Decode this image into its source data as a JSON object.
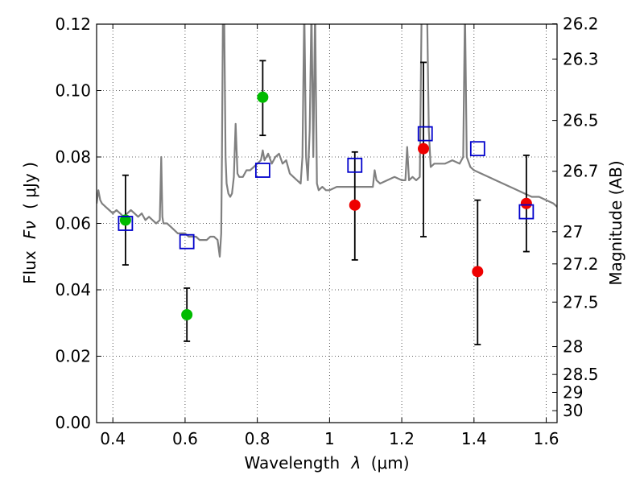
{
  "chart_data": {
    "type": "scatter",
    "title": "",
    "xlabel": "Wavelength",
    "xlabel_symbol": "λ",
    "xlabel_unit": "(μm)",
    "ylabel": "Flux",
    "ylabel_symbol": "Fν",
    "ylabel_unit": "( μJy )",
    "y2label": "Magnitude (AB)",
    "xlim": [
      0.355,
      1.63
    ],
    "ylim": [
      0.0,
      0.12
    ],
    "grid": true,
    "x_ticks": [
      0.4,
      0.6,
      0.8,
      1.0,
      1.2,
      1.4,
      1.6
    ],
    "x_tick_labels": [
      "0.4",
      "0.6",
      "0.8",
      "1",
      "1.2",
      "1.4",
      "1.6"
    ],
    "y_ticks": [
      0.0,
      0.02,
      0.04,
      0.06,
      0.08,
      0.1,
      0.12
    ],
    "y_tick_labels": [
      "0.00",
      "0.02",
      "0.04",
      "0.06",
      "0.08",
      "0.10",
      "0.12"
    ],
    "y2_ticks": [
      {
        "label": "26.2",
        "flux": 0.1201
      },
      {
        "label": "26.3",
        "flux": 0.1095
      },
      {
        "label": "26.5",
        "flux": 0.091
      },
      {
        "label": "26.7",
        "flux": 0.0757
      },
      {
        "label": "27",
        "flux": 0.0575
      },
      {
        "label": "27.2",
        "flux": 0.0478
      },
      {
        "label": "27.5",
        "flux": 0.0363
      },
      {
        "label": "28",
        "flux": 0.0229
      },
      {
        "label": "28.5",
        "flux": 0.0145
      },
      {
        "label": "29",
        "flux": 0.0091
      },
      {
        "label": "30",
        "flux": 0.0036
      }
    ],
    "colors": {
      "spectrum": "#808080",
      "green_points": "#00bb00",
      "red_points": "#ee0000",
      "model_squares": "#0000cc",
      "error_bars": "#000000",
      "grid": "#333333"
    },
    "series": [
      {
        "name": "spectrum",
        "kind": "line",
        "x": [
          0.355,
          0.36,
          0.365,
          0.37,
          0.38,
          0.39,
          0.4,
          0.41,
          0.42,
          0.43,
          0.44,
          0.45,
          0.46,
          0.47,
          0.48,
          0.49,
          0.5,
          0.51,
          0.52,
          0.53,
          0.534,
          0.537,
          0.54,
          0.55,
          0.56,
          0.57,
          0.58,
          0.59,
          0.6,
          0.61,
          0.62,
          0.63,
          0.64,
          0.65,
          0.66,
          0.67,
          0.68,
          0.69,
          0.696,
          0.7,
          0.702,
          0.705,
          0.708,
          0.712,
          0.715,
          0.72,
          0.725,
          0.73,
          0.735,
          0.74,
          0.745,
          0.75,
          0.76,
          0.77,
          0.78,
          0.79,
          0.8,
          0.81,
          0.815,
          0.82,
          0.83,
          0.84,
          0.85,
          0.86,
          0.87,
          0.88,
          0.89,
          0.9,
          0.91,
          0.92,
          0.925,
          0.93,
          0.935,
          0.94,
          0.945,
          0.95,
          0.955,
          0.96,
          0.965,
          0.97,
          0.98,
          0.99,
          1.0,
          1.02,
          1.04,
          1.06,
          1.08,
          1.1,
          1.12,
          1.125,
          1.13,
          1.14,
          1.16,
          1.18,
          1.2,
          1.21,
          1.215,
          1.22,
          1.23,
          1.24,
          1.25,
          1.255,
          1.26,
          1.265,
          1.27,
          1.275,
          1.28,
          1.29,
          1.3,
          1.32,
          1.34,
          1.36,
          1.37,
          1.375,
          1.38,
          1.39,
          1.4,
          1.42,
          1.44,
          1.46,
          1.48,
          1.5,
          1.52,
          1.54,
          1.56,
          1.58,
          1.6,
          1.62,
          1.63
        ],
        "y": [
          0.066,
          0.07,
          0.067,
          0.066,
          0.065,
          0.064,
          0.063,
          0.064,
          0.063,
          0.062,
          0.063,
          0.064,
          0.063,
          0.062,
          0.063,
          0.061,
          0.062,
          0.061,
          0.06,
          0.061,
          0.08,
          0.062,
          0.06,
          0.06,
          0.059,
          0.058,
          0.057,
          0.057,
          0.057,
          0.056,
          0.056,
          0.056,
          0.055,
          0.055,
          0.055,
          0.056,
          0.056,
          0.055,
          0.05,
          0.057,
          0.08,
          0.125,
          0.125,
          0.08,
          0.072,
          0.069,
          0.068,
          0.069,
          0.074,
          0.09,
          0.075,
          0.074,
          0.074,
          0.076,
          0.076,
          0.077,
          0.078,
          0.079,
          0.082,
          0.079,
          0.081,
          0.078,
          0.08,
          0.081,
          0.078,
          0.079,
          0.075,
          0.074,
          0.073,
          0.072,
          0.08,
          0.125,
          0.08,
          0.073,
          0.088,
          0.125,
          0.08,
          0.125,
          0.072,
          0.07,
          0.071,
          0.07,
          0.07,
          0.071,
          0.071,
          0.071,
          0.071,
          0.071,
          0.071,
          0.076,
          0.073,
          0.072,
          0.073,
          0.074,
          0.073,
          0.073,
          0.083,
          0.073,
          0.074,
          0.073,
          0.074,
          0.125,
          0.125,
          0.125,
          0.125,
          0.088,
          0.077,
          0.078,
          0.078,
          0.078,
          0.079,
          0.078,
          0.08,
          0.125,
          0.08,
          0.077,
          0.076,
          0.075,
          0.074,
          0.073,
          0.072,
          0.071,
          0.07,
          0.069,
          0.068,
          0.068,
          0.067,
          0.066,
          0.065
        ]
      },
      {
        "name": "green measurements",
        "kind": "points",
        "marker": "circle",
        "x": [
          0.435,
          0.605,
          0.815
        ],
        "y": [
          0.061,
          0.0325,
          0.098
        ],
        "yerr_low": [
          0.0475,
          0.0245,
          0.0865
        ],
        "yerr_high": [
          0.0745,
          0.0405,
          0.109
        ]
      },
      {
        "name": "red measurements",
        "kind": "points",
        "marker": "circle",
        "x": [
          1.07,
          1.26,
          1.41,
          1.545
        ],
        "y": [
          0.0655,
          0.0825,
          0.0455,
          0.066
        ],
        "yerr_low": [
          0.049,
          0.056,
          0.0235,
          0.0515
        ],
        "yerr_high": [
          0.0815,
          0.1085,
          0.067,
          0.0805
        ]
      },
      {
        "name": "model photometry",
        "kind": "points",
        "marker": "square",
        "x": [
          0.435,
          0.605,
          0.815,
          1.07,
          1.265,
          1.41,
          1.545
        ],
        "y": [
          0.06,
          0.0545,
          0.076,
          0.0775,
          0.087,
          0.0825,
          0.0635
        ]
      }
    ]
  }
}
